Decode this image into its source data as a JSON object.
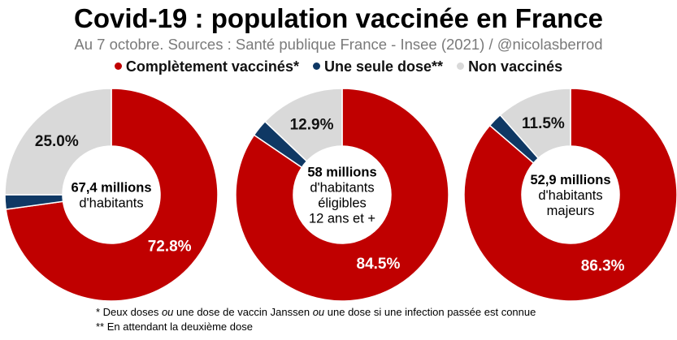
{
  "chart_data": {
    "type": "pie",
    "variant": "donut",
    "title": "Covid-19 : population vaccinée en France",
    "subtitle": "Au 7 octobre. Sources : Santé publique France - Insee (2021) / @nicolasberrod",
    "legend": [
      {
        "label": "Complètement vaccinés*",
        "color": "#c00000"
      },
      {
        "label": "Une seule dose**",
        "color": "#0f3864"
      },
      {
        "label": "Non vaccinés",
        "color": "#d9d9d9"
      }
    ],
    "legend_position": "top",
    "charts": [
      {
        "center_lines": [
          "67,4 millions",
          "d'habitants"
        ],
        "values": [
          72.8,
          2.2,
          25.0
        ],
        "labels": [
          "72.8%",
          "",
          "25.0%"
        ]
      },
      {
        "center_lines": [
          "58 millions",
          "d'habitants",
          "éligibles",
          "12 ans et +"
        ],
        "values": [
          84.5,
          2.6,
          12.9
        ],
        "labels": [
          "84.5%",
          "",
          "12.9%"
        ]
      },
      {
        "center_lines": [
          "52,9 millions",
          "d'habitants",
          "majeurs"
        ],
        "values": [
          86.3,
          2.2,
          11.5
        ],
        "labels": [
          "86.3%",
          "",
          "11.5%"
        ]
      }
    ]
  },
  "footnotes": [
    "* Deux doses ou une dose de vaccin Janssen ou une dose si une infection passée est connue",
    "** En attendant la deuxième dose"
  ]
}
